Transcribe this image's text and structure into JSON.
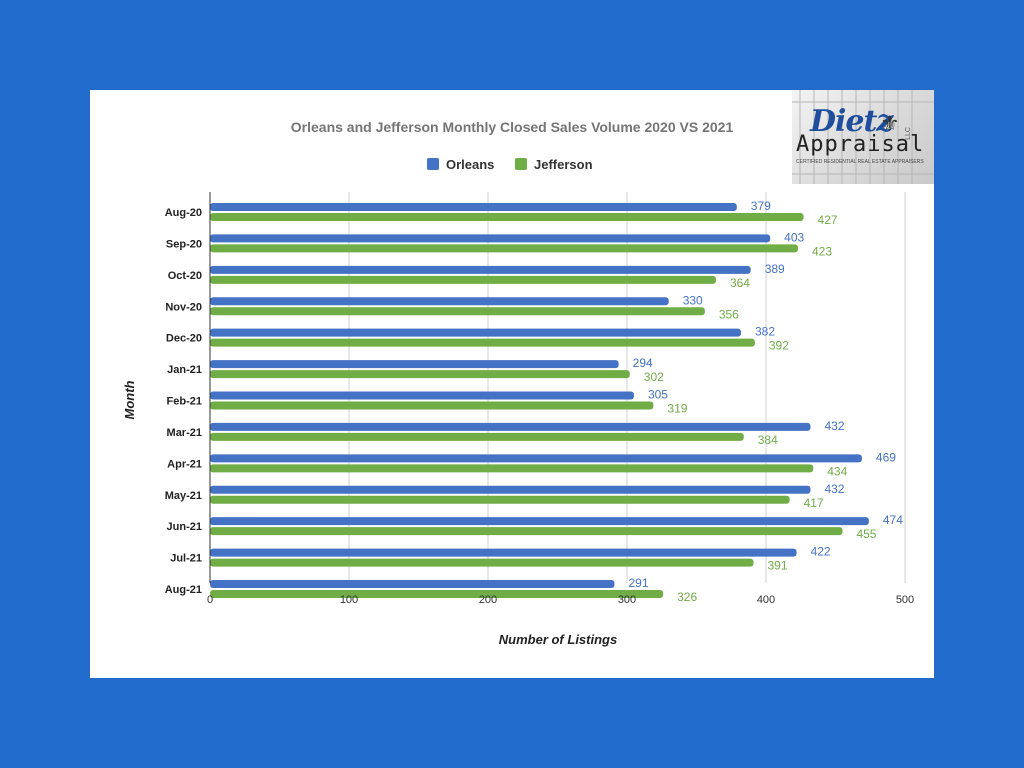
{
  "colors": {
    "background": "#216bcc",
    "orleans": "#4472c4",
    "jefferson": "#70ad47"
  },
  "logo": {
    "script": "Dietz",
    "llc": "LLC",
    "word": "Appraisal",
    "tagline": "CERTIFIED RESIDENTIAL REAL ESTATE APPRAISERS"
  },
  "chart_data": {
    "type": "bar",
    "orientation": "horizontal",
    "title": "Orleans and Jefferson Monthly Closed Sales Volume 2020 VS 2021",
    "xlabel": "Number of Listings",
    "ylabel": "Month",
    "xlim": [
      0,
      500
    ],
    "x_ticks": [
      "0",
      "100",
      "200",
      "300",
      "400",
      "500"
    ],
    "grid": true,
    "legend_position": "top-center",
    "categories": [
      "Aug-20",
      "Sep-20",
      "Oct-20",
      "Nov-20",
      "Dec-20",
      "Jan-21",
      "Feb-21",
      "Mar-21",
      "Apr-21",
      "May-21",
      "Jun-21",
      "Jul-21",
      "Aug-21"
    ],
    "series": [
      {
        "name": "Orleans",
        "color": "#4472c4",
        "values": [
          379,
          403,
          389,
          330,
          382,
          294,
          305,
          432,
          469,
          432,
          474,
          422,
          291
        ]
      },
      {
        "name": "Jefferson",
        "color": "#70ad47",
        "values": [
          427,
          423,
          364,
          356,
          392,
          302,
          319,
          384,
          434,
          417,
          455,
          391,
          326
        ]
      }
    ]
  }
}
